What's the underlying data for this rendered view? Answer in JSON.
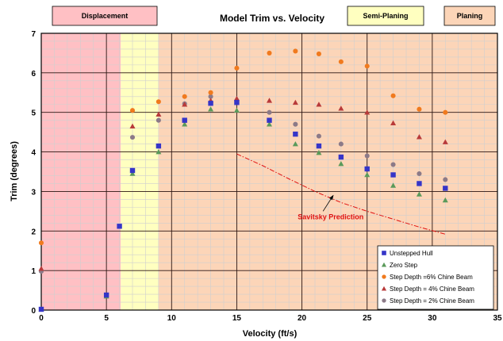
{
  "chart_data": {
    "type": "scatter",
    "title": "Model Trim vs. Velocity",
    "xlabel": "Velocity (ft/s)",
    "ylabel": "Trim (degrees)",
    "xlim": [
      0,
      35
    ],
    "ylim": [
      0,
      7
    ],
    "x_ticks": [
      0,
      5,
      10,
      15,
      20,
      25,
      30,
      35
    ],
    "y_ticks": [
      0,
      1,
      2,
      3,
      4,
      5,
      6,
      7
    ],
    "grid": true,
    "legend_position": "bottom-right",
    "regions": [
      {
        "name": "Displacement",
        "x_start": 0,
        "x_end": 6.1,
        "color": "#ffc0c4"
      },
      {
        "name": "Semi-Planing",
        "x_start": 6.1,
        "x_end": 9.0,
        "color": "#ffffc0"
      },
      {
        "name": "Planing",
        "x_start": 9.0,
        "x_end": 35,
        "color": "#fcd5b8"
      }
    ],
    "series": [
      {
        "name": "Unstepped Hull",
        "marker": "square",
        "color": "#3535c8",
        "x": [
          0,
          5,
          6,
          7,
          9,
          11,
          13,
          15,
          17.5,
          19.5,
          21.3,
          23,
          25,
          27,
          29,
          31
        ],
        "y": [
          0.02,
          0.38,
          2.12,
          3.53,
          4.15,
          4.8,
          5.23,
          5.25,
          4.8,
          4.45,
          4.15,
          3.87,
          3.57,
          3.42,
          3.2,
          3.08
        ]
      },
      {
        "name": "Zero Step",
        "marker": "triangle",
        "color": "#5a9a5a",
        "x": [
          0,
          5,
          7,
          9,
          11,
          13,
          15,
          17.5,
          19.5,
          21.3,
          23,
          25,
          27,
          29,
          31
        ],
        "y": [
          0.02,
          0.35,
          3.45,
          4.0,
          4.7,
          5.08,
          5.05,
          4.7,
          4.2,
          3.98,
          3.7,
          3.42,
          3.15,
          2.93,
          2.78
        ]
      },
      {
        "name": "Step Depth =6% Chine Beam",
        "marker": "circle",
        "color": "#f07a1e",
        "x": [
          0,
          7,
          9,
          11,
          13,
          15,
          17.5,
          19.5,
          21.3,
          23,
          25,
          27,
          29,
          31
        ],
        "y": [
          1.7,
          5.05,
          5.27,
          5.4,
          5.5,
          6.12,
          6.5,
          6.55,
          6.48,
          6.28,
          6.17,
          5.42,
          5.08,
          5.0
        ]
      },
      {
        "name": "Step Depth = 4% Chine Beam",
        "marker": "triangle",
        "color": "#b83a3a",
        "x": [
          0,
          7,
          9,
          11,
          13,
          15,
          17.5,
          19.5,
          21.3,
          23,
          25,
          27,
          29,
          31
        ],
        "y": [
          1.05,
          4.65,
          4.95,
          5.2,
          5.3,
          5.35,
          5.3,
          5.25,
          5.2,
          5.1,
          5.0,
          4.73,
          4.38,
          4.25
        ]
      },
      {
        "name": "Step Depth = 2% Chine Beam",
        "marker": "circle",
        "color": "#8c7a88",
        "x": [
          0,
          7,
          9,
          11,
          13,
          15,
          17.5,
          19.5,
          21.3,
          23,
          25,
          27,
          29,
          31
        ],
        "y": [
          0.98,
          4.37,
          4.8,
          5.22,
          5.4,
          5.3,
          5.0,
          4.7,
          4.4,
          4.2,
          3.9,
          3.68,
          3.45,
          3.3
        ]
      }
    ],
    "savitsky_curve": {
      "name": "Savitsky Prediction",
      "color": "#e01010",
      "x": [
        15,
        17,
        19,
        21,
        23,
        25,
        27,
        29,
        31
      ],
      "y": [
        3.95,
        3.65,
        3.32,
        3.0,
        2.72,
        2.5,
        2.3,
        2.1,
        1.92
      ]
    },
    "annotation": {
      "text": "Savitsky Prediction",
      "x": 21.5,
      "y": 2.3,
      "arrow_to": [
        22.4,
        2.9
      ]
    }
  }
}
